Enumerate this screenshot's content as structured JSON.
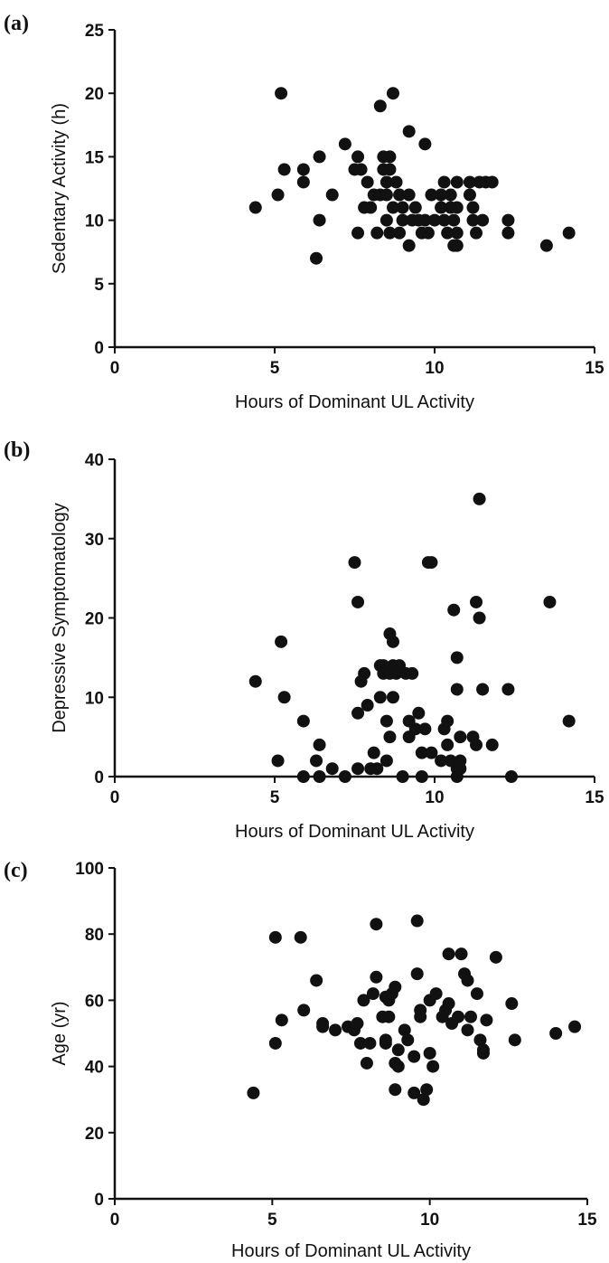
{
  "chart_data": [
    {
      "panel": "(a)",
      "type": "scatter",
      "xlabel": "Hours of Dominant UL Activity",
      "ylabel": "Sedentary Activity (h)",
      "xlim": [
        0,
        15
      ],
      "ylim": [
        0,
        25
      ],
      "xticks": [
        "0",
        "5",
        "10",
        "15"
      ],
      "yticks": [
        "0",
        "5",
        "10",
        "15",
        "20",
        "25"
      ],
      "grid": false,
      "points": [
        [
          4.4,
          11
        ],
        [
          5.1,
          12
        ],
        [
          5.2,
          20
        ],
        [
          5.3,
          14
        ],
        [
          5.9,
          14
        ],
        [
          5.9,
          13
        ],
        [
          6.3,
          7
        ],
        [
          6.4,
          10
        ],
        [
          6.4,
          15
        ],
        [
          6.8,
          12
        ],
        [
          7.2,
          16
        ],
        [
          7.5,
          14
        ],
        [
          7.6,
          15
        ],
        [
          7.6,
          9
        ],
        [
          7.7,
          14
        ],
        [
          7.8,
          11
        ],
        [
          7.9,
          13
        ],
        [
          8.0,
          11
        ],
        [
          8.1,
          12
        ],
        [
          8.2,
          9
        ],
        [
          8.3,
          12
        ],
        [
          8.3,
          19
        ],
        [
          8.4,
          15
        ],
        [
          8.4,
          14
        ],
        [
          8.5,
          13
        ],
        [
          8.5,
          12
        ],
        [
          8.5,
          10
        ],
        [
          8.6,
          9
        ],
        [
          8.6,
          15
        ],
        [
          8.6,
          14
        ],
        [
          8.7,
          20
        ],
        [
          8.7,
          11
        ],
        [
          8.8,
          13
        ],
        [
          8.9,
          12
        ],
        [
          8.9,
          9
        ],
        [
          9.0,
          11
        ],
        [
          9.0,
          10
        ],
        [
          9.2,
          8
        ],
        [
          9.2,
          17
        ],
        [
          9.2,
          12
        ],
        [
          9.3,
          10
        ],
        [
          9.4,
          11
        ],
        [
          9.5,
          10
        ],
        [
          9.6,
          9
        ],
        [
          9.7,
          16
        ],
        [
          9.7,
          10
        ],
        [
          9.8,
          9
        ],
        [
          9.9,
          12
        ],
        [
          10.0,
          10
        ],
        [
          10.2,
          12
        ],
        [
          10.2,
          11
        ],
        [
          10.3,
          10
        ],
        [
          10.3,
          13
        ],
        [
          10.4,
          9
        ],
        [
          10.5,
          12
        ],
        [
          10.5,
          11
        ],
        [
          10.6,
          10
        ],
        [
          10.6,
          8
        ],
        [
          10.7,
          13
        ],
        [
          10.7,
          11
        ],
        [
          10.7,
          9
        ],
        [
          10.7,
          8
        ],
        [
          11.1,
          13
        ],
        [
          11.1,
          12
        ],
        [
          11.2,
          11
        ],
        [
          11.2,
          10
        ],
        [
          11.3,
          9
        ],
        [
          11.4,
          13
        ],
        [
          11.5,
          10
        ],
        [
          11.6,
          13
        ],
        [
          11.8,
          13
        ],
        [
          12.3,
          9
        ],
        [
          12.3,
          10
        ],
        [
          13.5,
          8
        ],
        [
          14.2,
          9
        ]
      ]
    },
    {
      "panel": "(b)",
      "type": "scatter",
      "xlabel": "Hours of Dominant UL Activity",
      "ylabel": "Depressive Symptomatology",
      "xlim": [
        0,
        15
      ],
      "ylim": [
        0,
        40
      ],
      "xticks": [
        "0",
        "5",
        "10",
        "15"
      ],
      "yticks": [
        "0",
        "10",
        "20",
        "30",
        "40"
      ],
      "grid": false,
      "points": [
        [
          4.4,
          12
        ],
        [
          5.1,
          2
        ],
        [
          5.2,
          17
        ],
        [
          5.3,
          10
        ],
        [
          5.9,
          7
        ],
        [
          5.9,
          0
        ],
        [
          6.3,
          2
        ],
        [
          6.4,
          4
        ],
        [
          6.4,
          0
        ],
        [
          6.8,
          1
        ],
        [
          7.2,
          0
        ],
        [
          7.5,
          27
        ],
        [
          7.6,
          22
        ],
        [
          7.6,
          8
        ],
        [
          7.6,
          1
        ],
        [
          7.7,
          12
        ],
        [
          7.8,
          13
        ],
        [
          7.9,
          9
        ],
        [
          8.0,
          1
        ],
        [
          8.1,
          3
        ],
        [
          8.2,
          1
        ],
        [
          8.3,
          14
        ],
        [
          8.3,
          10
        ],
        [
          8.4,
          14
        ],
        [
          8.4,
          13
        ],
        [
          8.5,
          7
        ],
        [
          8.5,
          2
        ],
        [
          8.6,
          18
        ],
        [
          8.6,
          13
        ],
        [
          8.6,
          5
        ],
        [
          8.7,
          17
        ],
        [
          8.7,
          14
        ],
        [
          8.7,
          10
        ],
        [
          8.8,
          13
        ],
        [
          8.9,
          14
        ],
        [
          9.0,
          0
        ],
        [
          9.1,
          13
        ],
        [
          9.2,
          7
        ],
        [
          9.2,
          5
        ],
        [
          9.3,
          13
        ],
        [
          9.4,
          6
        ],
        [
          9.5,
          8
        ],
        [
          9.6,
          0
        ],
        [
          9.6,
          3
        ],
        [
          9.7,
          6
        ],
        [
          9.8,
          27
        ],
        [
          9.9,
          3
        ],
        [
          9.9,
          27
        ],
        [
          10.2,
          2
        ],
        [
          10.3,
          6
        ],
        [
          10.4,
          4
        ],
        [
          10.4,
          7
        ],
        [
          10.5,
          2
        ],
        [
          10.6,
          21
        ],
        [
          10.7,
          15
        ],
        [
          10.7,
          11
        ],
        [
          10.7,
          1
        ],
        [
          10.7,
          0
        ],
        [
          10.8,
          5
        ],
        [
          10.8,
          2
        ],
        [
          10.8,
          1
        ],
        [
          11.2,
          5
        ],
        [
          11.3,
          4
        ],
        [
          11.3,
          22
        ],
        [
          11.4,
          20
        ],
        [
          11.4,
          35
        ],
        [
          11.5,
          11
        ],
        [
          11.8,
          4
        ],
        [
          12.3,
          11
        ],
        [
          12.4,
          0
        ],
        [
          13.6,
          22
        ],
        [
          14.2,
          7
        ]
      ]
    },
    {
      "panel": "(c)",
      "type": "scatter",
      "xlabel": "Hours of Dominant UL Activity",
      "ylabel": "Age (yr)",
      "xlim": [
        0,
        15
      ],
      "ylim": [
        0,
        100
      ],
      "xticks": [
        "0",
        "5",
        "10",
        "15"
      ],
      "yticks": [
        "0",
        "20",
        "40",
        "60",
        "80",
        "100"
      ],
      "grid": false,
      "points": [
        [
          4.4,
          32
        ],
        [
          5.1,
          47
        ],
        [
          5.1,
          79
        ],
        [
          5.3,
          54
        ],
        [
          5.9,
          79
        ],
        [
          6.0,
          57
        ],
        [
          6.4,
          66
        ],
        [
          6.6,
          53
        ],
        [
          6.6,
          52
        ],
        [
          7.0,
          51
        ],
        [
          7.4,
          52
        ],
        [
          7.6,
          51
        ],
        [
          7.7,
          53
        ],
        [
          7.8,
          47
        ],
        [
          7.9,
          60
        ],
        [
          8.0,
          41
        ],
        [
          8.1,
          47
        ],
        [
          8.2,
          62
        ],
        [
          8.3,
          67
        ],
        [
          8.3,
          83
        ],
        [
          8.5,
          55
        ],
        [
          8.6,
          61
        ],
        [
          8.6,
          47
        ],
        [
          8.6,
          48
        ],
        [
          8.7,
          60
        ],
        [
          8.7,
          55
        ],
        [
          8.8,
          62
        ],
        [
          8.9,
          64
        ],
        [
          8.9,
          33
        ],
        [
          8.9,
          41
        ],
        [
          9.0,
          40
        ],
        [
          9.0,
          45
        ],
        [
          9.2,
          51
        ],
        [
          9.3,
          48
        ],
        [
          9.5,
          32
        ],
        [
          9.5,
          43
        ],
        [
          9.6,
          68
        ],
        [
          9.6,
          84
        ],
        [
          9.7,
          57
        ],
        [
          9.7,
          55
        ],
        [
          9.8,
          30
        ],
        [
          9.9,
          33
        ],
        [
          10.0,
          60
        ],
        [
          10.0,
          44
        ],
        [
          10.1,
          40
        ],
        [
          10.2,
          62
        ],
        [
          10.4,
          55
        ],
        [
          10.5,
          57
        ],
        [
          10.6,
          59
        ],
        [
          10.6,
          74
        ],
        [
          10.7,
          53
        ],
        [
          10.9,
          55
        ],
        [
          11.0,
          74
        ],
        [
          11.1,
          68
        ],
        [
          11.2,
          66
        ],
        [
          11.2,
          51
        ],
        [
          11.3,
          55
        ],
        [
          11.5,
          62
        ],
        [
          11.6,
          48
        ],
        [
          11.7,
          45
        ],
        [
          11.7,
          44
        ],
        [
          11.8,
          54
        ],
        [
          12.1,
          73
        ],
        [
          12.6,
          59
        ],
        [
          12.7,
          48
        ],
        [
          14.0,
          50
        ],
        [
          14.6,
          52
        ]
      ]
    }
  ]
}
